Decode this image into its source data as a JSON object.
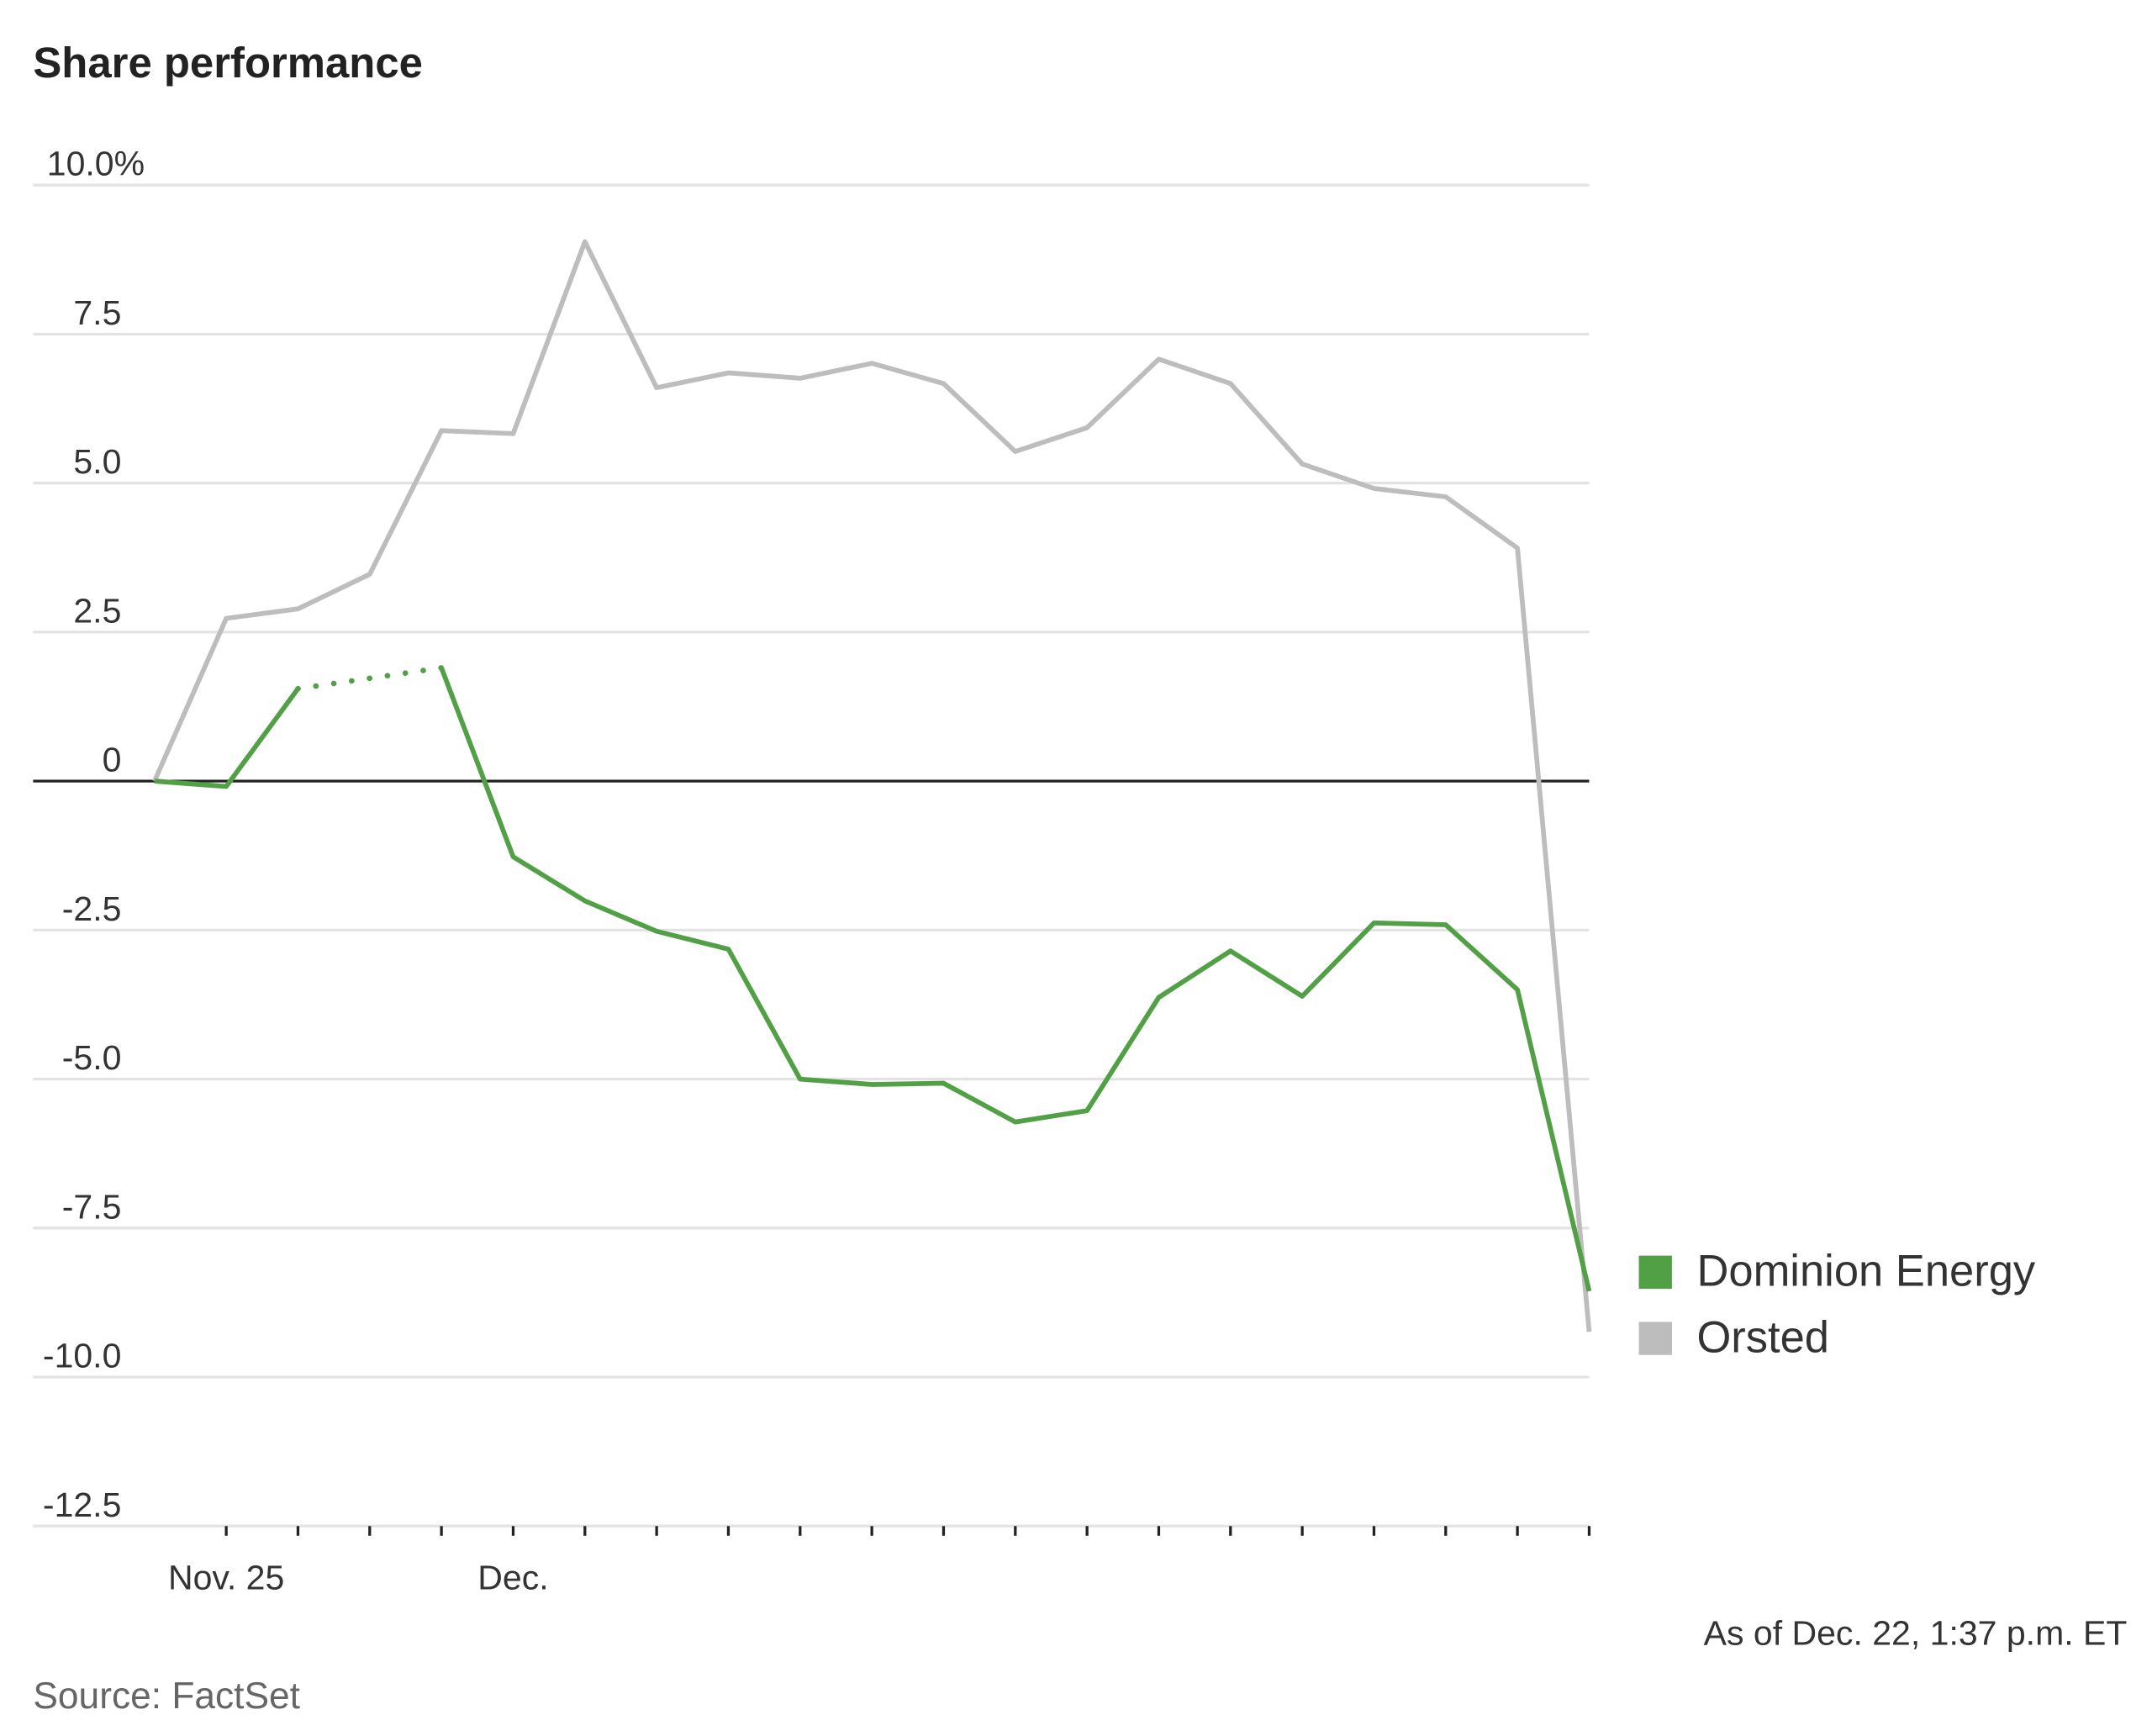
{
  "chart_data": {
    "type": "line",
    "title": "Share performance",
    "ylabel": "",
    "xlabel": "",
    "ylim": [
      -12.5,
      10
    ],
    "yticks": [
      10,
      7.5,
      5,
      2.5,
      0,
      -2.5,
      -5,
      -7.5,
      -10,
      -12.5
    ],
    "ytick_labels": [
      "10.0%",
      "7.5",
      "5.0",
      "2.5",
      "0",
      "-2.5",
      "-5.0",
      "-7.5",
      "-10.0",
      "-12.5"
    ],
    "x_tick_labels": [
      {
        "index": 1,
        "label": "Nov. 25"
      },
      {
        "index": 5,
        "label": "Dec."
      }
    ],
    "grid": true,
    "legend_placement": "right",
    "series": [
      {
        "name": "Dominion Energy",
        "color": "#52a046",
        "values": [
          0,
          -0.09,
          1.55,
          null,
          1.9,
          -1.27,
          -2.01,
          -2.52,
          -2.82,
          -5.0,
          -5.09,
          -5.07,
          -5.72,
          -5.53,
          -3.63,
          -2.85,
          -3.61,
          -2.38,
          -2.41,
          -3.5,
          -8.56
        ]
      },
      {
        "name": "Orsted",
        "color": "#bdbdbd",
        "values": [
          0,
          2.73,
          2.89,
          3.47,
          5.88,
          5.83,
          9.05,
          6.6,
          6.85,
          6.76,
          7.01,
          6.67,
          5.53,
          5.93,
          7.08,
          6.67,
          5.32,
          4.91,
          4.77,
          3.91,
          -9.24
        ]
      }
    ],
    "note": "As of Dec. 22, 1:37 p.m. ET",
    "source": "Source: FactSet"
  }
}
